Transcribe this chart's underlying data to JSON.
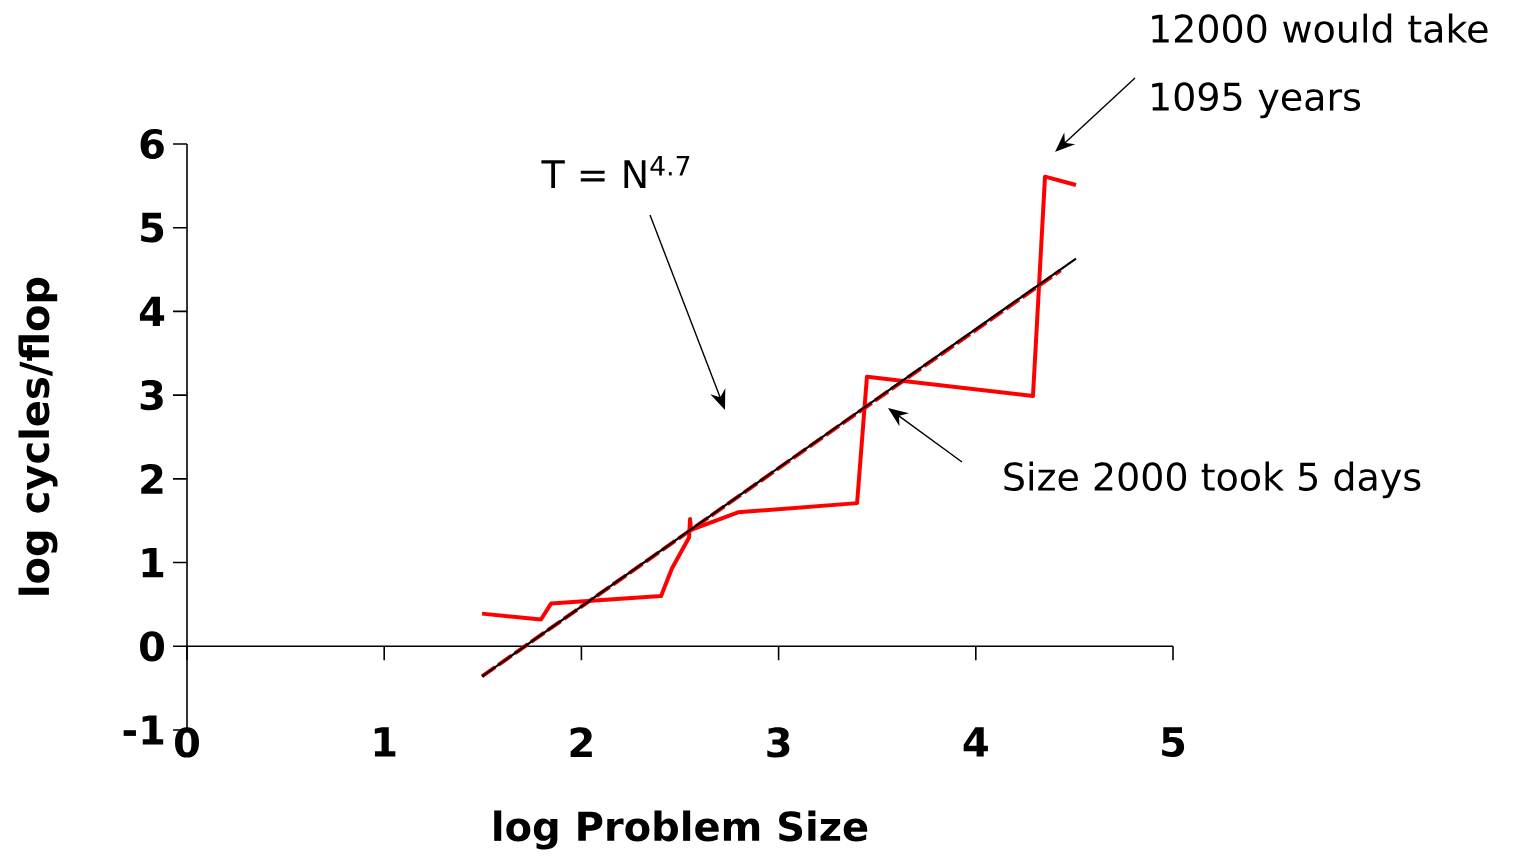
{
  "chart_data": {
    "type": "line",
    "xlabel": "log Problem Size",
    "ylabel": "log cycles/flop",
    "xlim": [
      0,
      5
    ],
    "ylim": [
      -1,
      6
    ],
    "xticks": [
      0,
      1,
      2,
      3,
      4,
      5
    ],
    "yticks": [
      -1,
      0,
      1,
      2,
      3,
      4,
      5,
      6
    ],
    "grid": false,
    "marker": "none",
    "series": [
      {
        "color": "#ff0000",
        "line_style": "solid",
        "x": [
          1.496,
          1.795,
          1.846,
          2.404,
          2.459,
          2.546,
          2.551,
          2.556,
          2.794,
          3.398,
          3.448,
          4.29,
          4.351,
          4.508
        ],
        "values": [
          0.39,
          0.32,
          0.51,
          0.6,
          0.93,
          1.3,
          1.52,
          1.39,
          1.6,
          1.71,
          3.22,
          2.99,
          5.61,
          5.51
        ]
      },
      {
        "color": "#ff0000",
        "line_style": "dashed",
        "x": [
          1.496,
          4.43
        ],
        "values": [
          -0.36,
          4.49
        ]
      },
      {
        "color": "#000000",
        "line_style": "solid",
        "x": [
          1.496,
          4.508
        ],
        "values": [
          -0.36,
          4.63
        ]
      }
    ],
    "annotations": [
      "T = N$^{4.7}$",
      "Size 2000 took 5 days",
      "12000 would take 1095 years"
    ]
  }
}
